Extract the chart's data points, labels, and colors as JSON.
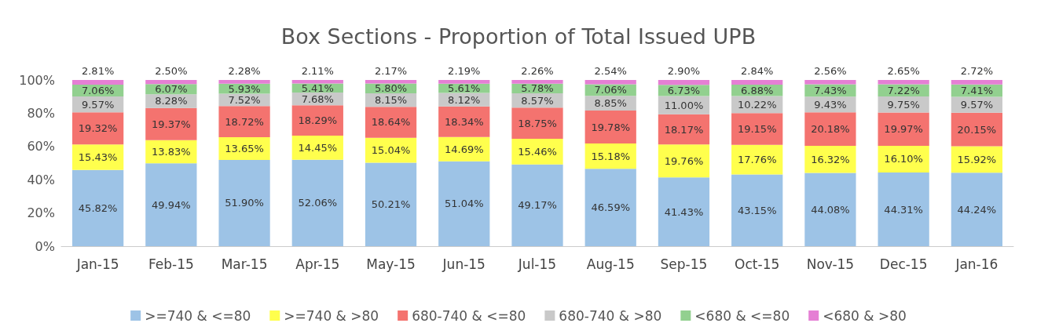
{
  "chart_data": {
    "type": "bar",
    "title": "Box Sections - Proportion of Total Issued UPB",
    "stacked": true,
    "legend": "bottom",
    "grid": false,
    "categories": [
      "Jan-15",
      "Feb-15",
      "Mar-15",
      "Apr-15",
      "May-15",
      "Jun-15",
      "Jul-15",
      "Aug-15",
      "Sep-15",
      "Oct-15",
      "Nov-15",
      "Dec-15",
      "Jan-16"
    ],
    "ylim": [
      0,
      100
    ],
    "yticks": [
      {
        "value": 0,
        "label": "0%"
      },
      {
        "value": 20,
        "label": "20%"
      },
      {
        "value": 40,
        "label": "40%"
      },
      {
        "value": 60,
        "label": "60%"
      },
      {
        "value": 80,
        "label": "80%"
      },
      {
        "value": 100,
        "label": "100%"
      }
    ],
    "series": [
      {
        "name": ">=740 & <=80",
        "color": "#9dc3e6",
        "values": [
          45.82,
          49.94,
          51.9,
          52.06,
          50.21,
          51.04,
          49.17,
          46.59,
          41.43,
          43.15,
          44.08,
          44.31,
          44.24
        ],
        "value_labels": [
          "45.82%",
          "49.94%",
          "51.90%",
          "52.06%",
          "50.21%",
          "51.04%",
          "49.17%",
          "46.59%",
          "41.43%",
          "43.15%",
          "44.08%",
          "44.31%",
          "44.24%"
        ]
      },
      {
        "name": ">=740 & >80",
        "color": "#ffff4d",
        "values": [
          15.43,
          13.83,
          13.65,
          14.45,
          15.04,
          14.69,
          15.46,
          15.18,
          19.76,
          17.76,
          16.32,
          16.1,
          15.92
        ],
        "value_labels": [
          "15.43%",
          "13.83%",
          "13.65%",
          "14.45%",
          "15.04%",
          "14.69%",
          "15.46%",
          "15.18%",
          "19.76%",
          "17.76%",
          "16.32%",
          "16.10%",
          "15.92%"
        ]
      },
      {
        "name": "680-740 & <=80",
        "color": "#f4736f",
        "values": [
          19.32,
          19.37,
          18.72,
          18.29,
          18.64,
          18.34,
          18.75,
          19.78,
          18.17,
          19.15,
          20.18,
          19.97,
          20.15
        ],
        "value_labels": [
          "19.32%",
          "19.37%",
          "18.72%",
          "18.29%",
          "18.64%",
          "18.34%",
          "18.75%",
          "19.78%",
          "18.17%",
          "19.15%",
          "20.18%",
          "19.97%",
          "20.15%"
        ]
      },
      {
        "name": "680-740 & >80",
        "color": "#c9c9c9",
        "values": [
          9.57,
          8.28,
          7.52,
          7.68,
          8.15,
          8.12,
          8.57,
          8.85,
          11.0,
          10.22,
          9.43,
          9.75,
          9.57
        ],
        "value_labels": [
          "9.57%",
          "8.28%",
          "7.52%",
          "7.68%",
          "8.15%",
          "8.12%",
          "8.57%",
          "8.85%",
          "11.00%",
          "10.22%",
          "9.43%",
          "9.75%",
          "9.57%"
        ]
      },
      {
        "name": "<680 & <=80",
        "color": "#92d08f",
        "values": [
          7.06,
          6.07,
          5.93,
          5.41,
          5.8,
          5.61,
          5.78,
          7.06,
          6.73,
          6.88,
          7.43,
          7.22,
          7.41
        ],
        "value_labels": [
          "7.06%",
          "6.07%",
          "5.93%",
          "5.41%",
          "5.80%",
          "5.61%",
          "5.78%",
          "7.06%",
          "6.73%",
          "6.88%",
          "7.43%",
          "7.22%",
          "7.41%"
        ]
      },
      {
        "name": "<680 & >80",
        "color": "#e57fd4",
        "values": [
          2.81,
          2.5,
          2.28,
          2.11,
          2.17,
          2.19,
          2.26,
          2.54,
          2.9,
          2.84,
          2.56,
          2.65,
          2.72
        ],
        "value_labels": [
          "2.81%",
          "2.50%",
          "2.28%",
          "2.11%",
          "2.17%",
          "2.19%",
          "2.26%",
          "2.54%",
          "2.90%",
          "2.84%",
          "2.56%",
          "2.65%",
          "2.72%"
        ]
      }
    ]
  }
}
